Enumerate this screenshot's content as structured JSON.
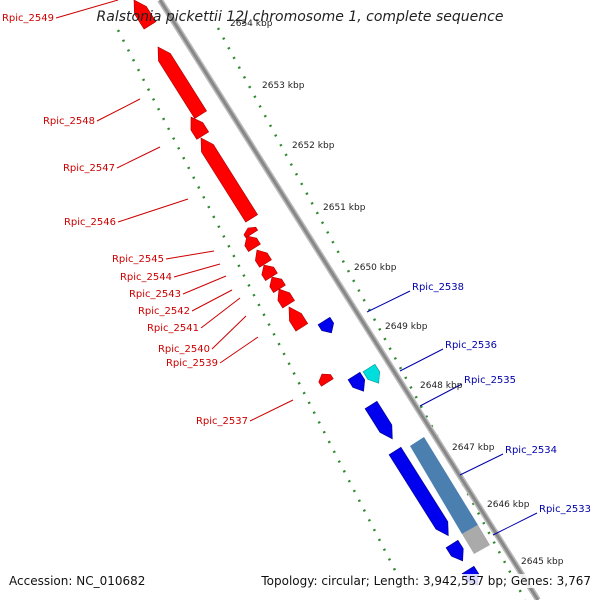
{
  "title": "Ralstonia pickettii 12J chromosome 1, complete sequence",
  "footer": {
    "accession_label": "Accession: NC_010682",
    "summary": "Topology: circular; Length: 3,942,557 bp; Genes: 3,767"
  },
  "colors": {
    "reverse_gene": "#ff0000",
    "forward_gene": "#0000ee",
    "forward_special": "#00dddd",
    "operon_band": "#4a7fb0",
    "operon_band_gray": "#aaaaaa",
    "backbone": "#888888",
    "tick_dots": "#2f8a2f",
    "reverse_label": "#cc0000",
    "forward_label": "#0000aa"
  },
  "ticks": [
    "2654 kbp",
    "2653 kbp",
    "2652 kbp",
    "2651 kbp",
    "2650 kbp",
    "2649 kbp",
    "2648 kbp",
    "2647 kbp",
    "2646 kbp",
    "2645 kbp"
  ],
  "reverse_genes": [
    "Rpic_2549",
    "Rpic_2548",
    "Rpic_2547",
    "Rpic_2546",
    "Rpic_2545",
    "Rpic_2544",
    "Rpic_2543",
    "Rpic_2542",
    "Rpic_2541",
    "Rpic_2540",
    "Rpic_2539",
    "Rpic_2537"
  ],
  "forward_genes": [
    "Rpic_2538",
    "Rpic_2536",
    "Rpic_2535",
    "Rpic_2534",
    "Rpic_2533"
  ]
}
